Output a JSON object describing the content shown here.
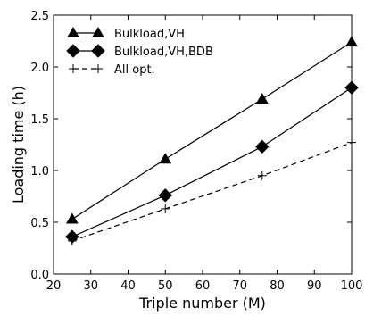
{
  "chart_data": {
    "type": "line",
    "xlabel": "Triple number (M)",
    "ylabel": "Loading time (h)",
    "xlim": [
      20,
      100
    ],
    "ylim": [
      0.0,
      2.5
    ],
    "xticks": [
      "20",
      "30",
      "40",
      "50",
      "60",
      "70",
      "80",
      "90",
      "100"
    ],
    "yticks": [
      "0.0",
      "0.5",
      "1.0",
      "1.5",
      "2.0",
      "2.5"
    ],
    "grid": false,
    "legend_position": "top-left",
    "series": [
      {
        "name": "Bulkload,VH",
        "marker": "triangle",
        "line": "solid",
        "x": [
          25,
          50,
          76,
          100
        ],
        "y": [
          0.53,
          1.11,
          1.69,
          2.24
        ]
      },
      {
        "name": "Bulkload,VH,BDB",
        "marker": "diamond",
        "line": "solid",
        "x": [
          25,
          50,
          76,
          100
        ],
        "y": [
          0.36,
          0.76,
          1.23,
          1.8
        ]
      },
      {
        "name": "All opt.",
        "marker": "plus",
        "line": "dashed",
        "x": [
          25,
          50,
          76,
          100
        ],
        "y": [
          0.32,
          0.63,
          0.95,
          1.27
        ]
      }
    ]
  }
}
